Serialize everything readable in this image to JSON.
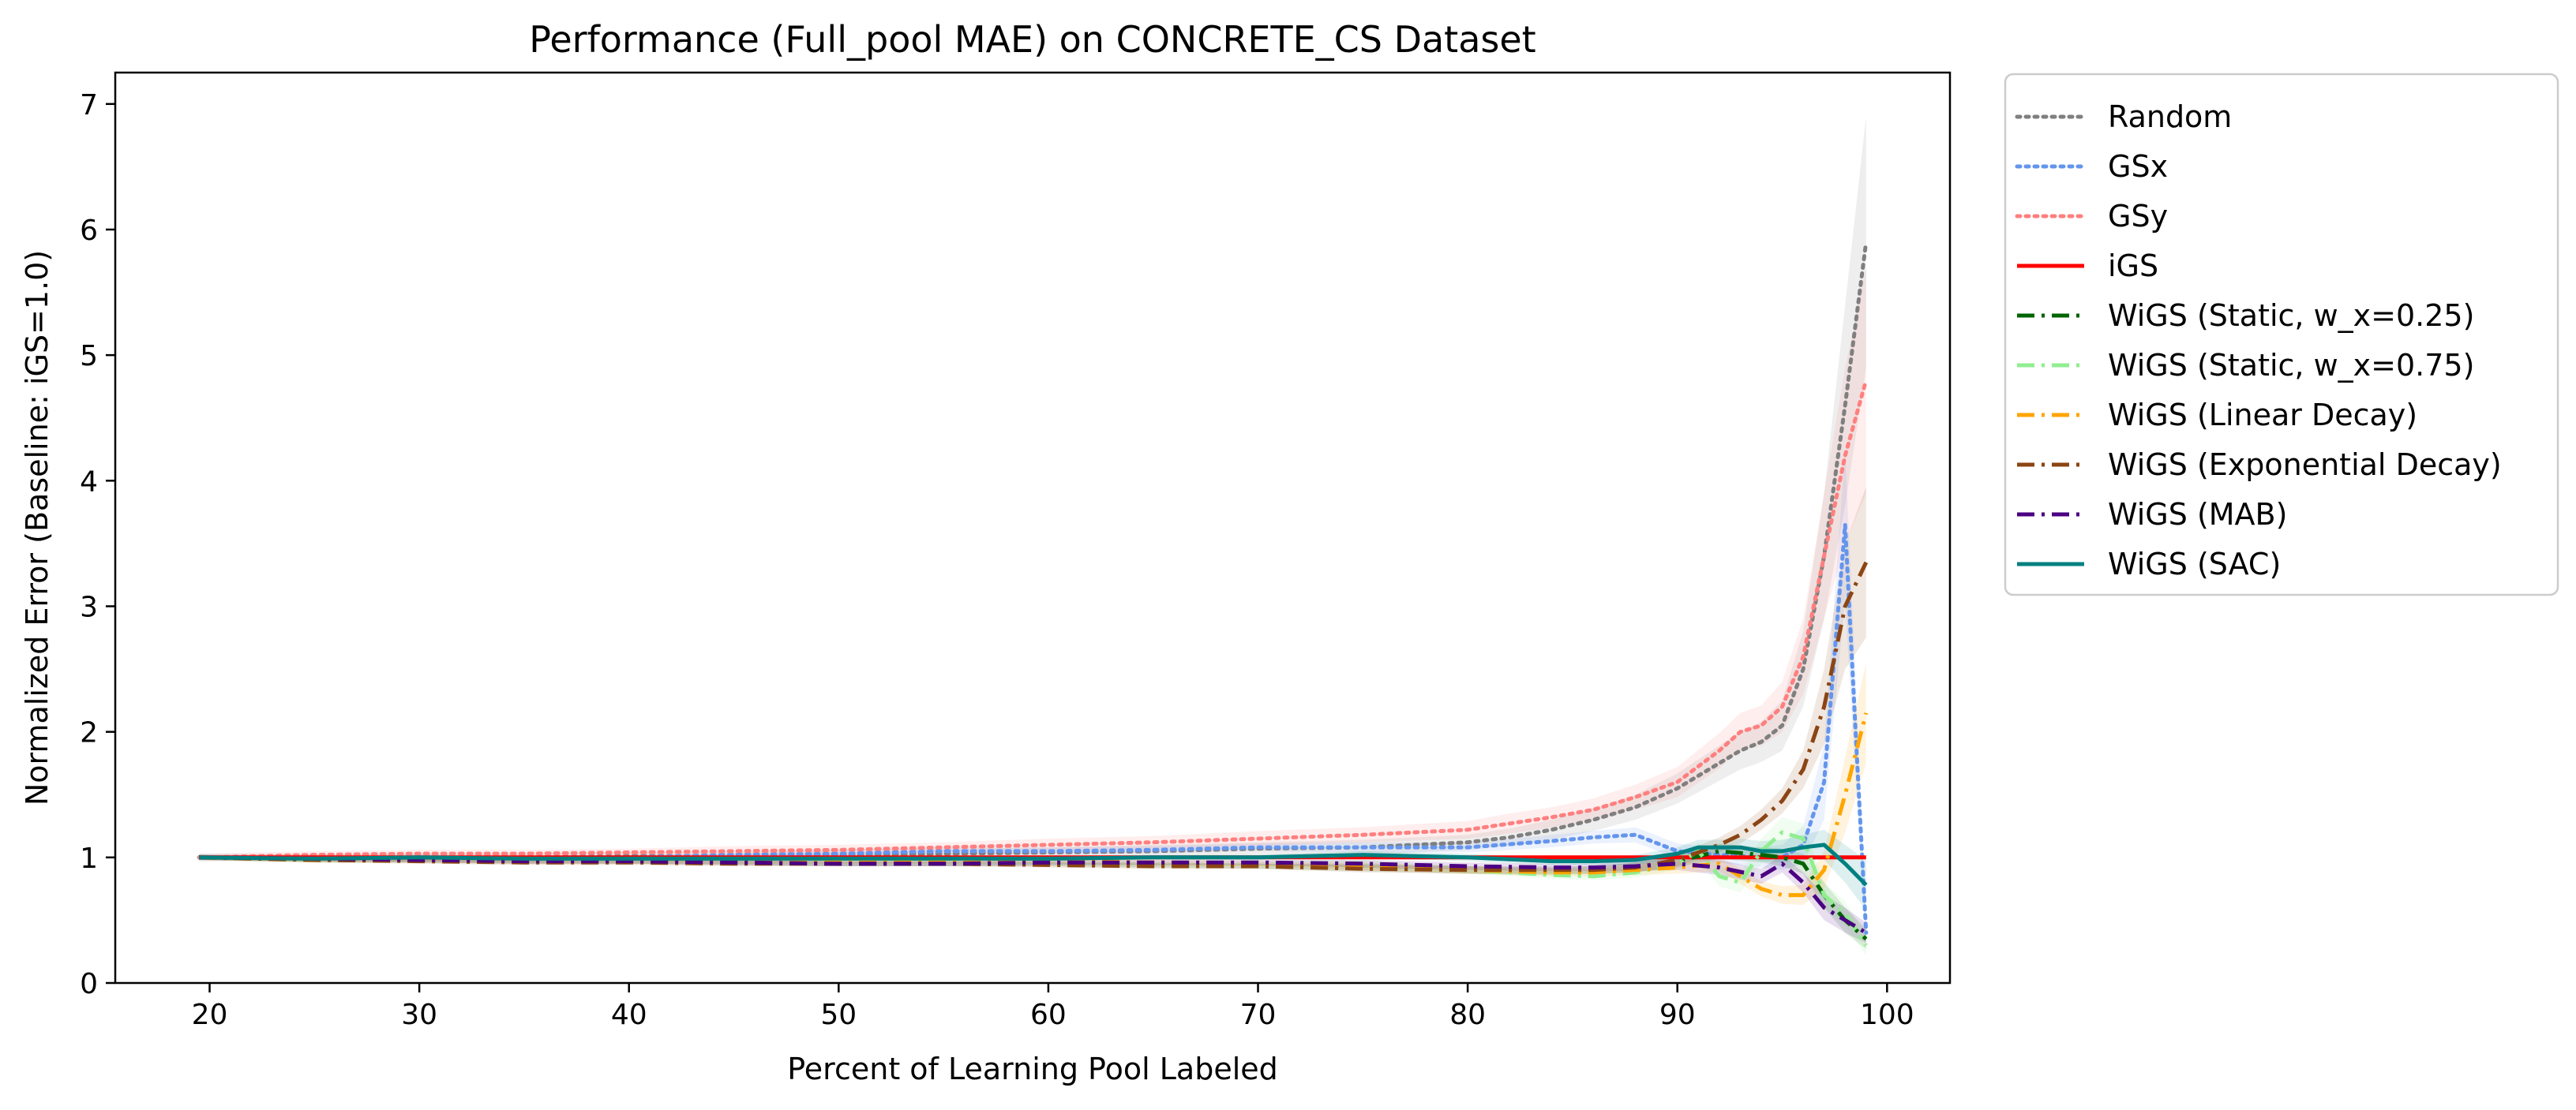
{
  "chart_data": {
    "type": "line",
    "title": "Performance (Full_pool MAE) on CONCRETE_CS Dataset",
    "xlabel": "Percent of Learning Pool Labeled",
    "ylabel": "Normalized Error (Baseline: iGS=1.0)",
    "xlim": [
      15.5,
      103.0
    ],
    "ylim": [
      0,
      7.25
    ],
    "xticks": [
      20,
      30,
      40,
      50,
      60,
      70,
      80,
      90,
      100
    ],
    "yticks": [
      0,
      1,
      2,
      3,
      4,
      5,
      6,
      7
    ],
    "legend_position": "outside-top-right",
    "grid": false,
    "series": [
      {
        "name": "Random",
        "color": "#7f7f7f",
        "dash": "dotted",
        "x": [
          19.5,
          25,
          30,
          35,
          40,
          45,
          50,
          55,
          60,
          65,
          70,
          75,
          80,
          82,
          84,
          86,
          88,
          90,
          92,
          93,
          94,
          95,
          96,
          97,
          98,
          99
        ],
        "y": [
          1.0,
          1.0,
          1.0,
          1.0,
          1.01,
          1.01,
          1.02,
          1.03,
          1.04,
          1.05,
          1.07,
          1.08,
          1.12,
          1.16,
          1.22,
          1.3,
          1.4,
          1.55,
          1.75,
          1.85,
          1.92,
          2.05,
          2.5,
          3.4,
          4.6,
          5.9
        ],
        "band": [
          0.03,
          0.03,
          0.03,
          0.03,
          0.03,
          0.03,
          0.04,
          0.04,
          0.04,
          0.05,
          0.05,
          0.06,
          0.06,
          0.07,
          0.08,
          0.09,
          0.1,
          0.12,
          0.14,
          0.15,
          0.16,
          0.2,
          0.3,
          0.5,
          0.8,
          1.0
        ]
      },
      {
        "name": "GSx",
        "color": "#6495ed",
        "dash": "dotted",
        "x": [
          19.5,
          25,
          30,
          35,
          40,
          45,
          50,
          55,
          60,
          65,
          70,
          75,
          80,
          84,
          86,
          88,
          90,
          92,
          94,
          95,
          96,
          97,
          98,
          98.5,
          99
        ],
        "y": [
          1.0,
          1.0,
          1.0,
          1.0,
          1.0,
          1.02,
          1.03,
          1.05,
          1.05,
          1.06,
          1.08,
          1.08,
          1.08,
          1.13,
          1.16,
          1.18,
          1.05,
          1.02,
          1.0,
          1.0,
          1.1,
          1.6,
          3.65,
          2.0,
          0.4
        ],
        "band": [
          0.02,
          0.02,
          0.02,
          0.02,
          0.02,
          0.02,
          0.03,
          0.03,
          0.03,
          0.03,
          0.03,
          0.04,
          0.04,
          0.05,
          0.05,
          0.06,
          0.06,
          0.06,
          0.08,
          0.1,
          0.15,
          0.3,
          0.6,
          0.4,
          0.1
        ]
      },
      {
        "name": "GSy",
        "color": "#ff7f7f",
        "dash": "dotted",
        "x": [
          19.5,
          25,
          30,
          35,
          40,
          45,
          50,
          55,
          60,
          65,
          70,
          75,
          80,
          82,
          84,
          86,
          88,
          90,
          92,
          93,
          94,
          95,
          96,
          97,
          98,
          99
        ],
        "y": [
          1.0,
          1.02,
          1.03,
          1.03,
          1.04,
          1.05,
          1.06,
          1.08,
          1.1,
          1.12,
          1.15,
          1.18,
          1.22,
          1.27,
          1.32,
          1.38,
          1.48,
          1.6,
          1.85,
          2.0,
          2.05,
          2.2,
          2.6,
          3.4,
          4.2,
          4.8
        ],
        "band": [
          0.03,
          0.03,
          0.03,
          0.03,
          0.03,
          0.04,
          0.04,
          0.04,
          0.05,
          0.05,
          0.06,
          0.06,
          0.07,
          0.08,
          0.08,
          0.09,
          0.1,
          0.12,
          0.14,
          0.15,
          0.16,
          0.2,
          0.3,
          0.5,
          0.7,
          0.9
        ]
      },
      {
        "name": "iGS",
        "color": "#ff0000",
        "dash": "solid",
        "x": [
          19.5,
          99
        ],
        "y": [
          1.0,
          1.0
        ]
      },
      {
        "name": "WiGS (Static, w_x=0.25)",
        "color": "#006400",
        "dash": "dashdot",
        "x": [
          19.5,
          25,
          30,
          35,
          40,
          45,
          50,
          55,
          60,
          65,
          70,
          75,
          80,
          84,
          86,
          88,
          90,
          92,
          94,
          95,
          96,
          97,
          98,
          99
        ],
        "y": [
          1.0,
          0.98,
          0.98,
          0.97,
          0.97,
          0.96,
          0.95,
          0.95,
          0.95,
          0.94,
          0.93,
          0.92,
          0.9,
          0.89,
          0.9,
          0.92,
          0.97,
          1.05,
          1.02,
          1.0,
          0.95,
          0.7,
          0.5,
          0.35
        ],
        "band": [
          0.02,
          0.02,
          0.02,
          0.02,
          0.02,
          0.02,
          0.02,
          0.02,
          0.02,
          0.02,
          0.02,
          0.03,
          0.03,
          0.03,
          0.03,
          0.04,
          0.05,
          0.06,
          0.06,
          0.07,
          0.08,
          0.1,
          0.1,
          0.08
        ]
      },
      {
        "name": "WiGS (Static, w_x=0.75)",
        "color": "#90ee90",
        "dash": "dashdot",
        "x": [
          19.5,
          25,
          30,
          35,
          40,
          45,
          50,
          55,
          60,
          65,
          70,
          75,
          80,
          84,
          86,
          88,
          90,
          91,
          92,
          93,
          94,
          95,
          96,
          97,
          98,
          99
        ],
        "y": [
          1.0,
          0.98,
          0.98,
          0.97,
          0.97,
          0.97,
          0.96,
          0.96,
          0.96,
          0.95,
          0.95,
          0.95,
          0.9,
          0.86,
          0.85,
          0.88,
          0.95,
          1.05,
          0.85,
          0.8,
          1.05,
          1.2,
          1.15,
          0.7,
          0.55,
          0.3
        ],
        "band": [
          0.02,
          0.02,
          0.02,
          0.02,
          0.02,
          0.02,
          0.02,
          0.02,
          0.02,
          0.02,
          0.02,
          0.03,
          0.03,
          0.03,
          0.03,
          0.04,
          0.05,
          0.07,
          0.08,
          0.08,
          0.1,
          0.12,
          0.12,
          0.1,
          0.1,
          0.08
        ]
      },
      {
        "name": "WiGS (Linear Decay)",
        "color": "#ffa500",
        "dash": "dashdot",
        "x": [
          19.5,
          25,
          30,
          35,
          40,
          45,
          50,
          55,
          60,
          65,
          70,
          75,
          80,
          84,
          86,
          88,
          90,
          92,
          94,
          95,
          96,
          97,
          98,
          99
        ],
        "y": [
          1.0,
          0.98,
          0.98,
          0.97,
          0.97,
          0.97,
          0.97,
          0.97,
          0.97,
          0.96,
          0.95,
          0.93,
          0.9,
          0.88,
          0.88,
          0.9,
          0.92,
          0.95,
          0.75,
          0.7,
          0.7,
          0.9,
          1.5,
          2.15
        ],
        "band": [
          0.02,
          0.02,
          0.02,
          0.02,
          0.02,
          0.02,
          0.02,
          0.02,
          0.02,
          0.02,
          0.02,
          0.03,
          0.03,
          0.03,
          0.03,
          0.04,
          0.05,
          0.06,
          0.06,
          0.07,
          0.08,
          0.15,
          0.3,
          0.4
        ]
      },
      {
        "name": "WiGS (Exponential Decay)",
        "color": "#8b4513",
        "dash": "dashdot",
        "x": [
          19.5,
          25,
          30,
          35,
          40,
          45,
          50,
          55,
          60,
          65,
          70,
          75,
          80,
          84,
          86,
          88,
          90,
          92,
          93,
          94,
          95,
          96,
          97,
          98,
          99
        ],
        "y": [
          1.0,
          0.98,
          0.97,
          0.96,
          0.96,
          0.95,
          0.95,
          0.95,
          0.94,
          0.93,
          0.93,
          0.91,
          0.9,
          0.9,
          0.9,
          0.92,
          0.98,
          1.1,
          1.18,
          1.3,
          1.45,
          1.7,
          2.2,
          3.0,
          3.35
        ],
        "band": [
          0.02,
          0.02,
          0.02,
          0.02,
          0.02,
          0.02,
          0.02,
          0.02,
          0.02,
          0.02,
          0.02,
          0.03,
          0.03,
          0.03,
          0.03,
          0.04,
          0.05,
          0.06,
          0.07,
          0.08,
          0.1,
          0.15,
          0.3,
          0.5,
          0.6
        ]
      },
      {
        "name": "WiGS (MAB)",
        "color": "#4b0082",
        "dash": "dashdot",
        "x": [
          19.5,
          25,
          30,
          35,
          40,
          45,
          50,
          55,
          60,
          65,
          70,
          75,
          80,
          84,
          86,
          88,
          90,
          92,
          94,
          95,
          96,
          97,
          98,
          99
        ],
        "y": [
          1.0,
          0.99,
          0.98,
          0.97,
          0.97,
          0.96,
          0.95,
          0.95,
          0.96,
          0.96,
          0.96,
          0.95,
          0.93,
          0.92,
          0.92,
          0.93,
          0.95,
          0.92,
          0.85,
          0.95,
          0.8,
          0.6,
          0.5,
          0.4
        ],
        "band": [
          0.02,
          0.02,
          0.02,
          0.02,
          0.02,
          0.02,
          0.02,
          0.02,
          0.02,
          0.02,
          0.02,
          0.03,
          0.03,
          0.03,
          0.03,
          0.04,
          0.05,
          0.06,
          0.06,
          0.07,
          0.08,
          0.1,
          0.1,
          0.08
        ]
      },
      {
        "name": "WiGS (SAC)",
        "color": "#008080",
        "dash": "solid",
        "x": [
          19.5,
          25,
          30,
          35,
          40,
          45,
          50,
          55,
          60,
          65,
          70,
          75,
          80,
          84,
          86,
          88,
          90,
          91,
          92,
          93,
          94,
          95,
          96,
          97,
          98,
          99
        ],
        "y": [
          1.0,
          0.99,
          1.0,
          0.99,
          0.99,
          0.99,
          0.99,
          0.99,
          0.99,
          1.0,
          1.0,
          1.02,
          1.0,
          0.97,
          0.97,
          0.98,
          1.03,
          1.08,
          1.08,
          1.08,
          1.05,
          1.05,
          1.08,
          1.1,
          0.95,
          0.78
        ],
        "band": [
          0.02,
          0.02,
          0.02,
          0.02,
          0.02,
          0.02,
          0.02,
          0.02,
          0.02,
          0.02,
          0.02,
          0.03,
          0.03,
          0.03,
          0.03,
          0.04,
          0.05,
          0.06,
          0.06,
          0.07,
          0.08,
          0.09,
          0.1,
          0.12,
          0.15,
          0.2
        ]
      }
    ]
  }
}
